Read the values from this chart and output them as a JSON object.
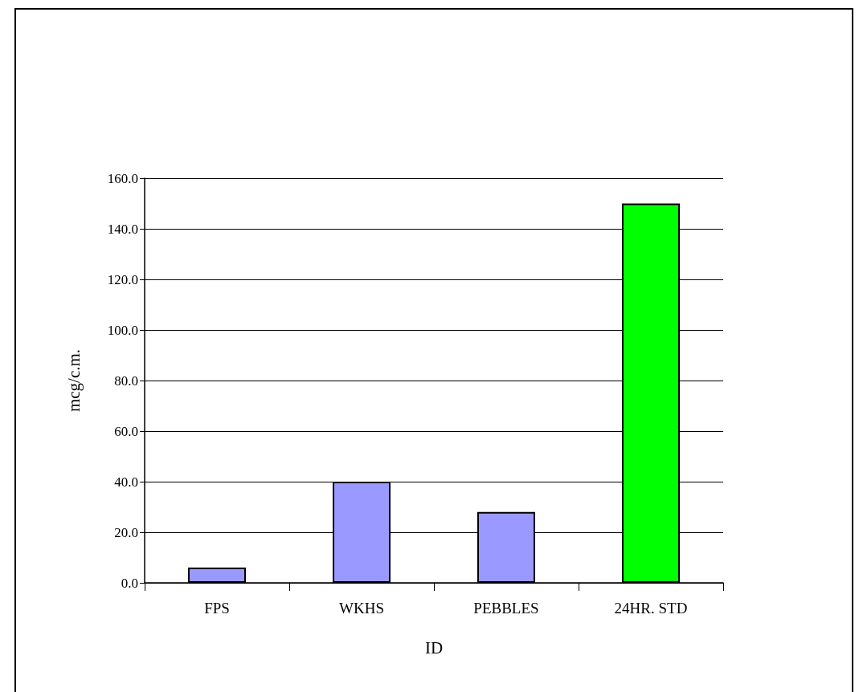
{
  "chart_data": {
    "type": "bar",
    "xlabel": "ID",
    "ylabel": "mcg/c.m.",
    "categories": [
      "FPS",
      "WKHS",
      "PEBBLES",
      "24HR. STD"
    ],
    "values": [
      6,
      40,
      28,
      150
    ],
    "colors": [
      "#9999ff",
      "#9999ff",
      "#9999ff",
      "#00ff00"
    ],
    "ylim": [
      0,
      160
    ],
    "yticks": [
      {
        "value": 0,
        "label": "0.0"
      },
      {
        "value": 20,
        "label": "20.0"
      },
      {
        "value": 40,
        "label": "40.0"
      },
      {
        "value": 60,
        "label": "60.0"
      },
      {
        "value": 80,
        "label": "80.0"
      },
      {
        "value": 100,
        "label": "100.0"
      },
      {
        "value": 120,
        "label": "120.0"
      },
      {
        "value": 140,
        "label": "140.0"
      },
      {
        "value": 160,
        "label": "160.0"
      }
    ],
    "grid": "y"
  }
}
